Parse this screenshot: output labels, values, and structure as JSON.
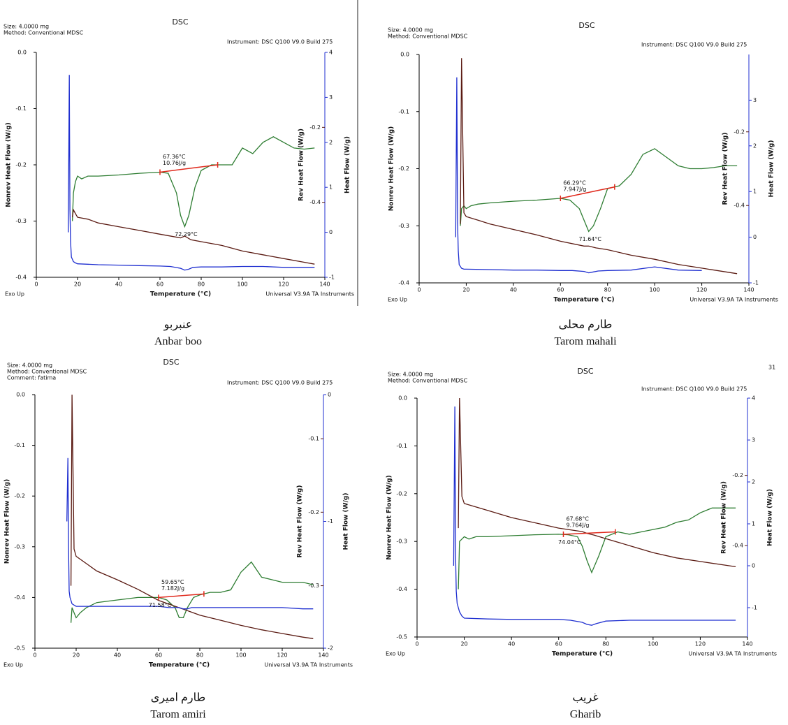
{
  "chart_data": [
    {
      "type": "line",
      "title": "DSC",
      "header": [
        "Size: 4.0000 mg",
        "Method: Conventional MDSC"
      ],
      "instrument": "Instrument: DSC Q100 V9.0 Build 275",
      "xlabel": "Temperature (°C)",
      "exo": "Exo Up",
      "software": "Universal V3.9A TA Instruments",
      "caption": [
        "عنبربو",
        "Anbar boo"
      ],
      "xlim": [
        0,
        140
      ],
      "xticks": [
        0,
        20,
        40,
        60,
        80,
        100,
        120,
        140
      ],
      "ylim": [
        -0.4,
        0
      ],
      "yticks": [
        {
          "value": 0,
          "label": "0.0"
        },
        -0.1,
        -0.2,
        -0.3,
        -0.4
      ],
      "y2lim": [
        -0.6,
        0
      ],
      "y2ticks": [
        -0.2,
        -0.4
      ],
      "y3lim": [
        -1,
        4
      ],
      "y3ticks": [
        -1,
        0,
        1,
        2,
        3,
        4
      ],
      "series": [
        {
          "name": "Nonrev Heat Flow (W/g)",
          "color": "#2e7d32",
          "x": [
            17.5,
            18,
            19,
            20,
            22,
            25,
            30,
            40,
            50,
            60,
            64,
            68,
            70,
            72,
            74,
            77,
            80,
            85,
            90,
            95,
            100,
            105,
            110,
            115,
            120,
            125,
            130,
            135
          ],
          "values": [
            -0.3,
            -0.25,
            -0.23,
            -0.22,
            -0.225,
            -0.22,
            -0.22,
            -0.218,
            -0.215,
            -0.213,
            -0.215,
            -0.25,
            -0.29,
            -0.31,
            -0.29,
            -0.24,
            -0.21,
            -0.2,
            -0.2,
            -0.2,
            -0.17,
            -0.18,
            -0.16,
            -0.15,
            -0.16,
            -0.17,
            -0.172,
            -0.17
          ]
        },
        {
          "name": "Rev Heat Flow (W/g)",
          "color": "#5a1a12",
          "axis": "y2",
          "x": [
            17.5,
            18,
            19,
            20,
            25,
            30,
            40,
            50,
            60,
            70,
            72,
            75,
            80,
            90,
            100,
            110,
            120,
            130,
            135
          ],
          "values": [
            -0.44,
            -0.42,
            -0.43,
            -0.44,
            -0.445,
            -0.455,
            -0.465,
            -0.475,
            -0.485,
            -0.495,
            -0.49,
            -0.5,
            -0.505,
            -0.515,
            -0.53,
            -0.54,
            -0.55,
            -0.56,
            -0.565
          ]
        },
        {
          "name": "Heat Flow (W/g)",
          "color": "#1f2fd0",
          "axis": "y3",
          "x": [
            15.5,
            16,
            16.3,
            16.6,
            17,
            18,
            19,
            20,
            30,
            40,
            50,
            60,
            65,
            70,
            72,
            74,
            76,
            80,
            90,
            100,
            110,
            120,
            130,
            135
          ],
          "values": [
            0,
            3.5,
            0.5,
            -0.2,
            -0.55,
            -0.65,
            -0.68,
            -0.7,
            -0.72,
            -0.73,
            -0.74,
            -0.75,
            -0.76,
            -0.8,
            -0.84,
            -0.82,
            -0.78,
            -0.77,
            -0.77,
            -0.76,
            -0.76,
            -0.78,
            -0.78,
            -0.78
          ]
        }
      ],
      "baseline": {
        "color": "#e0291c",
        "x": [
          60,
          88
        ],
        "values": [
          -0.213,
          -0.2
        ]
      },
      "annotations": {
        "onset": "67.36°C",
        "enthalpy": "10.76J/g",
        "peak": "72.29°C"
      }
    },
    {
      "type": "line",
      "title": "DSC",
      "header": [
        "Size: 4.0000 mg",
        "Method: Conventional MDSC"
      ],
      "instrument": "Instrument: DSC Q100 V9.0 Build 275",
      "xlabel": "Temperature (°C)",
      "exo": "Exo Up",
      "software": "Universal V3.9A TA Instruments",
      "caption": [
        "طارم محلی",
        "Tarom mahali"
      ],
      "xlim": [
        0,
        140
      ],
      "xticks": [
        0,
        20,
        40,
        60,
        80,
        100,
        120,
        140
      ],
      "ylim": [
        -0.4,
        0
      ],
      "yticks": [
        {
          "value": 0,
          "label": "0.0"
        },
        -0.1,
        -0.2,
        -0.3,
        -0.4
      ],
      "y2lim": [
        -0.61,
        0.01
      ],
      "y2ticks": [
        -0.2,
        -0.4
      ],
      "y3lim": [
        -1,
        4
      ],
      "y3ticks": [
        -1,
        0,
        1,
        2,
        3
      ],
      "series": [
        {
          "name": "Nonrev Heat Flow (W/g)",
          "color": "#2e7d32",
          "x": [
            17.5,
            18,
            19,
            20,
            22,
            25,
            30,
            40,
            50,
            60,
            64,
            68,
            70,
            72,
            74,
            77,
            80,
            85,
            90,
            95,
            100,
            105,
            110,
            115,
            120,
            125,
            130,
            135
          ],
          "values": [
            -0.3,
            -0.27,
            -0.265,
            -0.27,
            -0.265,
            -0.262,
            -0.26,
            -0.257,
            -0.255,
            -0.252,
            -0.255,
            -0.27,
            -0.29,
            -0.31,
            -0.3,
            -0.27,
            -0.235,
            -0.23,
            -0.21,
            -0.175,
            -0.165,
            -0.18,
            -0.195,
            -0.2,
            -0.2,
            -0.198,
            -0.195,
            -0.195
          ]
        },
        {
          "name": "Rev Heat Flow (W/g)",
          "color": "#5a1a12",
          "axis": "y2",
          "x": [
            17.5,
            18,
            19,
            20,
            25,
            30,
            40,
            50,
            60,
            70,
            72,
            75,
            80,
            90,
            100,
            110,
            120,
            130,
            135
          ],
          "values": [
            -0.45,
            0,
            -0.42,
            -0.43,
            -0.44,
            -0.45,
            -0.465,
            -0.48,
            -0.497,
            -0.51,
            -0.51,
            -0.515,
            -0.52,
            -0.535,
            -0.546,
            -0.56,
            -0.57,
            -0.58,
            -0.585
          ]
        },
        {
          "name": "Heat Flow (W/g)",
          "color": "#1f2fd0",
          "axis": "y3",
          "x": [
            15.5,
            16,
            16.3,
            16.6,
            17,
            18,
            19,
            20,
            30,
            40,
            50,
            60,
            65,
            70,
            72,
            74,
            76,
            80,
            90,
            100,
            110,
            120,
            130,
            135
          ],
          "values": [
            0,
            3.5,
            0.3,
            -0.3,
            -0.6,
            -0.68,
            -0.7,
            -0.7,
            -0.71,
            -0.72,
            -0.72,
            -0.73,
            -0.73,
            -0.75,
            -0.78,
            -0.76,
            -0.74,
            -0.73,
            -0.72,
            -0.65,
            -0.72,
            -0.73,
            null,
            null
          ]
        }
      ],
      "baseline": {
        "color": "#e0291c",
        "x": [
          60,
          83
        ],
        "values": [
          -0.252,
          -0.232
        ]
      },
      "annotations": {
        "onset": "66.29°C",
        "enthalpy": "7.947J/g",
        "peak": "71.64°C"
      }
    },
    {
      "type": "line",
      "title": "DSC",
      "header": [
        "Size: 4.0000 mg",
        "Method: Conventional MDSC",
        "Comment: fatima"
      ],
      "instrument": "Instrument: DSC Q100 V9.0 Build 275",
      "xlabel": "Temperature (°C)",
      "exo": "Exo Up",
      "software": "Universal V3.9A TA Instruments",
      "caption": [
        "طارم امیری",
        "Tarom amiri"
      ],
      "xlim": [
        0,
        140
      ],
      "xticks": [
        0,
        20,
        40,
        60,
        80,
        100,
        120,
        140
      ],
      "ylim": [
        -0.5,
        0
      ],
      "yticks": [
        {
          "value": 0,
          "label": "0.0"
        },
        -0.1,
        -0.2,
        -0.3,
        -0.4,
        -0.5
      ],
      "y2lim": [
        -0.385,
        -0.04
      ],
      "y2ticks": [
        -0.1,
        -0.2,
        -0.3
      ],
      "y3lim": [
        -2,
        0
      ],
      "y3ticks": [
        -2,
        -1,
        0
      ],
      "series": [
        {
          "name": "Nonrev Heat Flow (W/g)",
          "color": "#2e7d32",
          "x": [
            17.5,
            18,
            19,
            20,
            22,
            25,
            30,
            40,
            50,
            60,
            64,
            68,
            70,
            72,
            74,
            77,
            80,
            85,
            90,
            95,
            100,
            105,
            110,
            115,
            120,
            125,
            130,
            135
          ],
          "values": [
            -0.45,
            -0.42,
            -0.43,
            -0.44,
            -0.43,
            -0.42,
            -0.41,
            -0.405,
            -0.4,
            -0.4,
            -0.405,
            -0.42,
            -0.44,
            -0.44,
            -0.42,
            -0.4,
            -0.395,
            -0.39,
            -0.39,
            -0.385,
            -0.35,
            -0.33,
            -0.36,
            -0.365,
            -0.37,
            -0.37,
            -0.37,
            -0.375
          ]
        },
        {
          "name": "Rev Heat Flow (W/g)",
          "color": "#5a1a12",
          "axis": "y2",
          "x": [
            17.5,
            18,
            19,
            20,
            25,
            30,
            40,
            50,
            60,
            70,
            72,
            75,
            80,
            90,
            100,
            110,
            120,
            130,
            135
          ],
          "values": [
            -0.3,
            -0.04,
            -0.25,
            -0.26,
            -0.27,
            -0.28,
            -0.292,
            -0.305,
            -0.32,
            -0.33,
            -0.332,
            -0.335,
            -0.34,
            -0.347,
            -0.354,
            -0.36,
            -0.365,
            -0.37,
            -0.372
          ]
        },
        {
          "name": "Heat Flow (W/g)",
          "color": "#1f2fd0",
          "axis": "y3",
          "x": [
            15.5,
            16,
            16.3,
            16.6,
            17,
            18,
            19,
            20,
            30,
            40,
            50,
            60,
            65,
            70,
            72,
            74,
            76,
            80,
            90,
            100,
            110,
            120,
            130,
            135
          ],
          "values": [
            -1,
            -0.5,
            -1.2,
            -1.55,
            -1.6,
            -1.65,
            -1.66,
            -1.67,
            -1.67,
            -1.67,
            -1.67,
            -1.67,
            -1.68,
            -1.68,
            -1.69,
            -1.69,
            -1.68,
            -1.68,
            -1.68,
            -1.68,
            -1.68,
            -1.68,
            -1.69,
            -1.69
          ]
        }
      ],
      "baseline": {
        "color": "#e0291c",
        "x": [
          60,
          82
        ],
        "values": [
          -0.4,
          -0.393
        ]
      },
      "annotations": {
        "onset": "59.65°C",
        "enthalpy": "7.182J/g",
        "peak": "71.58°C"
      }
    },
    {
      "type": "line",
      "title": "DSC",
      "header": [
        "Size: 4.0000 mg",
        "Method: Conventional MDSC"
      ],
      "instrument": "Instrument: DSC Q100 V9.0 Build 275",
      "xlabel": "Temperature (°C)",
      "exo": "Exo Up",
      "software": "Universal V3.9A TA Instruments",
      "caption": [
        "غریب",
        "Gharib"
      ],
      "page_number": "31",
      "xlim": [
        0,
        140
      ],
      "xticks": [
        0,
        20,
        40,
        60,
        80,
        100,
        120,
        140
      ],
      "ylim": [
        -0.5,
        0
      ],
      "yticks": [
        {
          "value": 0,
          "label": "0.0"
        },
        -0.1,
        -0.2,
        -0.3,
        -0.4,
        -0.5
      ],
      "y2lim": [
        -0.66,
        0.02
      ],
      "y2ticks": [
        -0.2,
        -0.4
      ],
      "y3lim": [
        -1.7,
        4
      ],
      "y3ticks": [
        -1,
        0,
        1,
        2,
        3,
        4
      ],
      "series": [
        {
          "name": "Nonrev Heat Flow (W/g)",
          "color": "#2e7d32",
          "x": [
            17.5,
            18,
            19,
            20,
            22,
            25,
            30,
            40,
            50,
            60,
            64,
            68,
            70,
            72,
            74,
            77,
            80,
            85,
            90,
            95,
            100,
            105,
            110,
            115,
            120,
            125,
            130,
            135
          ],
          "values": [
            -0.4,
            -0.3,
            -0.295,
            -0.29,
            -0.295,
            -0.29,
            -0.29,
            -0.288,
            -0.286,
            -0.285,
            -0.286,
            -0.29,
            -0.31,
            -0.34,
            -0.365,
            -0.33,
            -0.29,
            -0.28,
            -0.285,
            -0.28,
            -0.275,
            -0.27,
            -0.26,
            -0.255,
            -0.24,
            -0.23,
            -0.23,
            -0.23
          ]
        },
        {
          "name": "Rev Heat Flow (W/g)",
          "color": "#5a1a12",
          "axis": "y2",
          "x": [
            17.5,
            18,
            19,
            20,
            25,
            30,
            40,
            50,
            60,
            70,
            72,
            75,
            80,
            90,
            100,
            110,
            120,
            130,
            135
          ],
          "values": [
            -0.35,
            0.02,
            -0.26,
            -0.28,
            -0.29,
            -0.3,
            -0.32,
            -0.335,
            -0.35,
            -0.36,
            -0.365,
            -0.37,
            -0.38,
            -0.4,
            -0.42,
            -0.435,
            -0.445,
            -0.455,
            -0.46
          ]
        },
        {
          "name": "Heat Flow (W/g)",
          "color": "#1f2fd0",
          "axis": "y3",
          "x": [
            15.5,
            16,
            16.3,
            16.6,
            17,
            18,
            19,
            20,
            30,
            40,
            50,
            60,
            65,
            70,
            72,
            74,
            76,
            80,
            90,
            100,
            110,
            120,
            130,
            135
          ],
          "values": [
            0,
            3.8,
            0.3,
            -0.6,
            -0.9,
            -1.1,
            -1.2,
            -1.25,
            -1.27,
            -1.28,
            -1.28,
            -1.28,
            -1.3,
            -1.35,
            -1.4,
            -1.42,
            -1.38,
            -1.32,
            -1.3,
            -1.3,
            -1.3,
            -1.3,
            -1.3,
            -1.3
          ]
        }
      ],
      "baseline": {
        "color": "#e0291c",
        "x": [
          62,
          84
        ],
        "values": [
          -0.285,
          -0.28
        ]
      },
      "annotations": {
        "onset": "67.68°C",
        "enthalpy": "9.764J/g",
        "peak": "74.04°C"
      }
    }
  ]
}
